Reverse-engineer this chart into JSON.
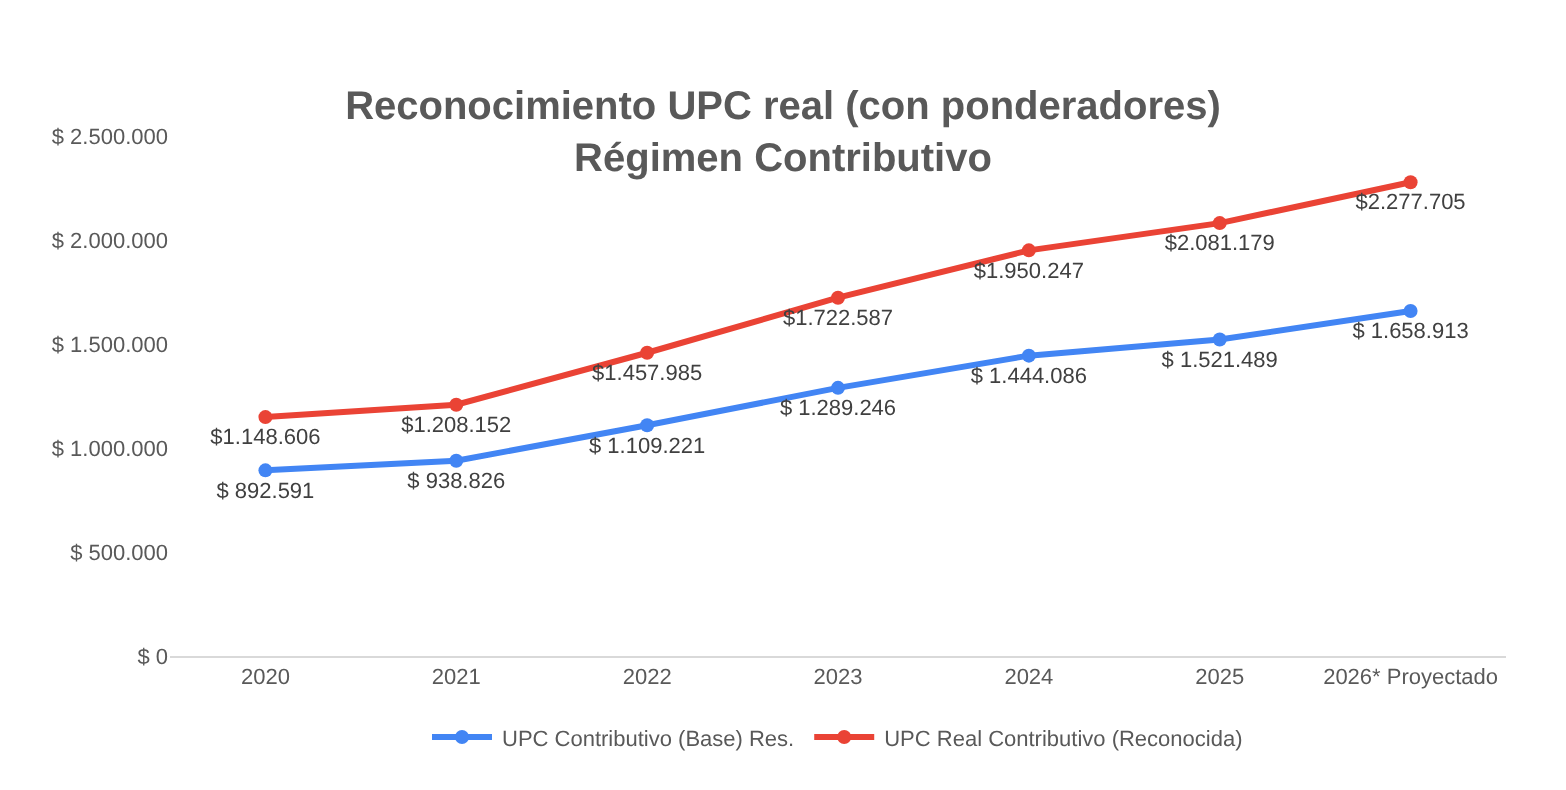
{
  "chart_data": {
    "type": "line",
    "title": "Reconocimiento UPC real (con ponderadores)\nRégimen Contributivo",
    "categories": [
      "2020",
      "2021",
      "2022",
      "2023",
      "2024",
      "2025",
      "2026* Proyectado"
    ],
    "series": [
      {
        "name": "UPC Contributivo (Base) Res.",
        "color": "#4285f4",
        "values": [
          892591,
          938826,
          1109221,
          1289246,
          1444086,
          1521489,
          1658913
        ],
        "value_labels": [
          "$ 892.591",
          "$ 938.826",
          "$ 1.109.221",
          "$ 1.289.246",
          "$ 1.444.086",
          "$ 1.521.489",
          "$ 1.658.913"
        ]
      },
      {
        "name": "UPC Real Contributivo (Reconocida)",
        "color": "#ea4335",
        "values": [
          1148606,
          1208152,
          1457985,
          1722587,
          1950247,
          2081179,
          2277705
        ],
        "value_labels": [
          "$1.148.606",
          "$1.208.152",
          "$1.457.985",
          "$1.722.587",
          "$1.950.247",
          "$2.081.179",
          "$2.277.705"
        ]
      }
    ],
    "ylim": [
      0,
      2500000
    ],
    "yticks": [
      {
        "value": 0,
        "label": "$ 0"
      },
      {
        "value": 500000,
        "label": "$ 500.000"
      },
      {
        "value": 1000000,
        "label": "$ 1.000.000"
      },
      {
        "value": 1500000,
        "label": "$ 1.500.000"
      },
      {
        "value": 2000000,
        "label": "$ 2.000.000"
      },
      {
        "value": 2500000,
        "label": "$ 2.500.000"
      }
    ],
    "grid": false,
    "legend": "bottom",
    "marker": "circle",
    "line_style": "solid"
  }
}
